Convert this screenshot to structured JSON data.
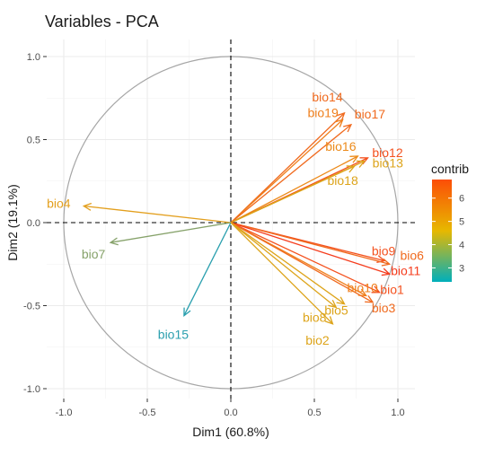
{
  "chart_data": {
    "type": "scatter",
    "subtype": "pca-variable-correlation-circle",
    "title": "Variables - PCA",
    "xlabel": "Dim1 (60.8%)",
    "ylabel": "Dim2 (19.1%)",
    "xlim": [
      -1.05,
      1.1
    ],
    "ylim": [
      -1.03,
      1.03
    ],
    "xticks": [
      -1.0,
      -0.5,
      0.0,
      0.5,
      1.0
    ],
    "xtick_labels": [
      "-1.0",
      "-0.5",
      "0.0",
      "0.5",
      "1.0"
    ],
    "yticks": [
      1.0,
      0.5,
      0.0,
      -0.5,
      -1.0
    ],
    "ytick_labels": [
      "1.0",
      "0.5",
      "0.0",
      "-0.5",
      "-1.0"
    ],
    "grid": true,
    "unit_circle": true,
    "origin_lines": "dashed",
    "variables": [
      {
        "name": "bio14",
        "x": 0.68,
        "y": 0.66,
        "contrib": 6.2,
        "color": "#f06a1e"
      },
      {
        "name": "bio19",
        "x": 0.67,
        "y": 0.62,
        "contrib": 5.6,
        "color": "#ef7f1c"
      },
      {
        "name": "bio17",
        "x": 0.72,
        "y": 0.59,
        "contrib": 6.1,
        "color": "#f06a1e"
      },
      {
        "name": "bio16",
        "x": 0.76,
        "y": 0.4,
        "contrib": 5.2,
        "color": "#ec8a1a"
      },
      {
        "name": "bio12",
        "x": 0.82,
        "y": 0.39,
        "contrib": 6.5,
        "color": "#f4511e"
      },
      {
        "name": "bio13",
        "x": 0.8,
        "y": 0.37,
        "contrib": 4.3,
        "color": "#dda41a"
      },
      {
        "name": "bio18",
        "x": 0.74,
        "y": 0.34,
        "contrib": 4.3,
        "color": "#dda41a"
      },
      {
        "name": "bio4",
        "x": -0.88,
        "y": 0.1,
        "contrib": 4.6,
        "color": "#e39f1d"
      },
      {
        "name": "bio7",
        "x": -0.72,
        "y": -0.12,
        "contrib": 3.4,
        "color": "#86a26a"
      },
      {
        "name": "bio15",
        "x": -0.28,
        "y": -0.56,
        "contrib": 2.8,
        "color": "#2a9fae"
      },
      {
        "name": "bio9",
        "x": 0.92,
        "y": -0.23,
        "contrib": 6.4,
        "color": "#f4511e"
      },
      {
        "name": "bio6",
        "x": 0.95,
        "y": -0.25,
        "contrib": 6.1,
        "color": "#f06a1e"
      },
      {
        "name": "bio11",
        "x": 0.95,
        "y": -0.31,
        "contrib": 6.6,
        "color": "#f53d1e"
      },
      {
        "name": "bio1",
        "x": 0.89,
        "y": -0.42,
        "contrib": 6.4,
        "color": "#f4511e"
      },
      {
        "name": "bio10",
        "x": 0.81,
        "y": -0.44,
        "contrib": 5.9,
        "color": "#ef7f1c"
      },
      {
        "name": "bio3",
        "x": 0.85,
        "y": -0.48,
        "contrib": 6.1,
        "color": "#f06a1e"
      },
      {
        "name": "bio5",
        "x": 0.68,
        "y": -0.49,
        "contrib": 4.4,
        "color": "#dda41a"
      },
      {
        "name": "bio8",
        "x": 0.63,
        "y": -0.51,
        "contrib": 4.4,
        "color": "#dda41a"
      },
      {
        "name": "bio2",
        "x": 0.61,
        "y": -0.61,
        "contrib": 4.4,
        "color": "#dda41a"
      }
    ],
    "legend": {
      "title": "contrib",
      "placement": "right",
      "min": 2.4,
      "max": 6.8,
      "ticks": [
        6,
        5,
        4,
        3
      ],
      "tick_labels": [
        "6",
        "5",
        "4",
        "3"
      ],
      "gradient_colors": [
        "#00afbb",
        "#e7b800",
        "#fc4e07"
      ]
    }
  }
}
